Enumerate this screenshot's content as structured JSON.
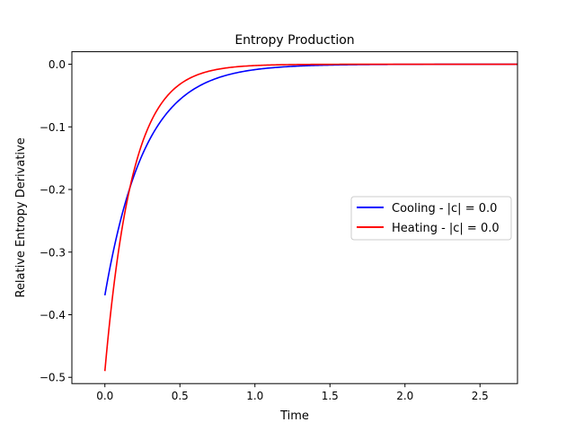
{
  "chart_data": {
    "type": "line",
    "title": "Entropy Production",
    "xlabel": "Time",
    "ylabel": "Relative Entropy Derivative",
    "xlim": [
      -0.22,
      2.75
    ],
    "ylim": [
      -0.51,
      0.02
    ],
    "xticks": [
      0.0,
      0.5,
      1.0,
      1.5,
      2.0,
      2.5
    ],
    "xtick_labels": [
      "0.0",
      "0.5",
      "1.0",
      "1.5",
      "2.0",
      "2.5"
    ],
    "yticks": [
      0.0,
      -0.1,
      -0.2,
      -0.3,
      -0.4,
      -0.5
    ],
    "ytick_labels": [
      "0.0",
      "−0.1",
      "−0.2",
      "−0.3",
      "−0.4",
      "−0.5"
    ],
    "grid": false,
    "legend_position": "center-right",
    "series": [
      {
        "name": "Cooling - |c| = 0.0",
        "color": "#0000ff",
        "x": [
          0.0,
          0.05,
          0.1,
          0.15,
          0.2,
          0.3,
          0.4,
          0.5,
          0.6,
          0.7,
          0.8,
          1.0,
          1.2,
          1.5,
          2.0,
          2.5,
          2.75
        ],
        "y": [
          -0.369,
          -0.305,
          -0.253,
          -0.21,
          -0.174,
          -0.12,
          -0.083,
          -0.057,
          -0.039,
          -0.027,
          -0.019,
          -0.009,
          -0.004,
          -0.001,
          0.0,
          0.0,
          0.0
        ]
      },
      {
        "name": "Heating - |c| = 0.0",
        "color": "#ff0000",
        "x": [
          0.0,
          0.05,
          0.1,
          0.15,
          0.2,
          0.3,
          0.4,
          0.5,
          0.6,
          0.7,
          0.8,
          1.0,
          1.2,
          1.5,
          2.0,
          2.5,
          2.75
        ],
        "y": [
          -0.49,
          -0.373,
          -0.284,
          -0.216,
          -0.165,
          -0.095,
          -0.055,
          -0.032,
          -0.018,
          -0.011,
          -0.006,
          -0.002,
          -0.001,
          0.0,
          0.0,
          0.0,
          0.0
        ]
      }
    ]
  }
}
